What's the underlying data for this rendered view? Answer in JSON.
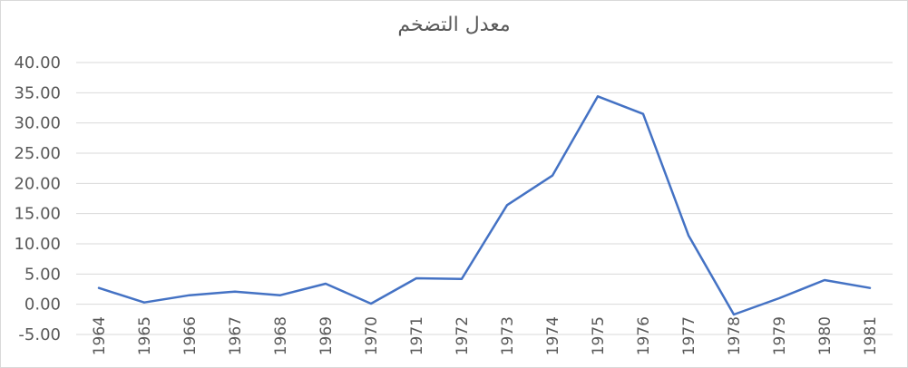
{
  "chart_data": {
    "type": "line",
    "title": "معدل التضخم",
    "xlabel": "",
    "ylabel": "",
    "ylim": [
      -5,
      40
    ],
    "y_ticks": [
      "-5.00",
      "0.00",
      "5.00",
      "10.00",
      "15.00",
      "20.00",
      "25.00",
      "30.00",
      "35.00",
      "40.00"
    ],
    "grid": true,
    "legend": "none",
    "categories": [
      "1964",
      "1965",
      "1966",
      "1967",
      "1968",
      "1969",
      "1970",
      "1971",
      "1972",
      "1973",
      "1974",
      "1975",
      "1976",
      "1977",
      "1978",
      "1979",
      "1980",
      "1981"
    ],
    "series": [
      {
        "color": "#4472c4",
        "values": [
          2.7,
          0.3,
          1.5,
          2.1,
          1.5,
          3.4,
          0.1,
          4.3,
          4.2,
          16.4,
          21.3,
          34.4,
          31.5,
          11.4,
          -1.7,
          1.0,
          4.0,
          2.7
        ]
      }
    ]
  }
}
